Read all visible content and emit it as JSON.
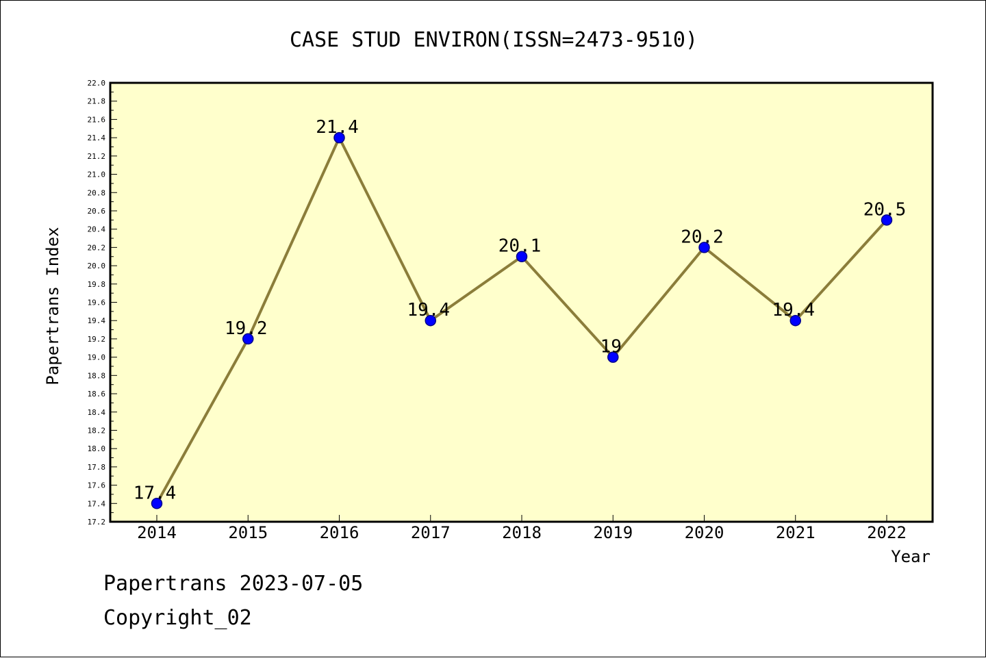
{
  "chart_data": {
    "type": "line",
    "title": "CASE STUD ENVIRON(ISSN=2473-9510)",
    "xlabel": "Year",
    "ylabel": "Papertrans Index",
    "categories": [
      "2014",
      "2015",
      "2016",
      "2017",
      "2018",
      "2019",
      "2020",
      "2021",
      "2022"
    ],
    "series": [
      {
        "values": [
          17.4,
          19.2,
          21.4,
          19.4,
          20.1,
          19.0,
          20.2,
          19.4,
          20.5
        ],
        "data_labels": [
          "17.4",
          "19.2",
          "21.4",
          "19.4",
          "20.1",
          "19",
          "20.2",
          "19.4",
          "20.5"
        ]
      }
    ],
    "ylim": [
      17.2,
      22.0
    ],
    "y_ticks": [
      "17.2",
      "17.4",
      "17.6",
      "17.8",
      "18.0",
      "18.2",
      "18.4",
      "18.6",
      "18.8",
      "19.0",
      "19.2",
      "19.4",
      "19.6",
      "19.8",
      "20.0",
      "20.2",
      "20.4",
      "20.6",
      "20.8",
      "21.0",
      "21.2",
      "21.4",
      "21.6",
      "21.8",
      "22.0"
    ],
    "grid": false,
    "colors": {
      "plot_background": "#ffffcc",
      "line": "#8b7d3a",
      "marker": "#0000ff",
      "marker_edge": "#00008b"
    }
  },
  "footer": {
    "date_text": "Papertrans 2023-07-05",
    "copyright_text": "Copyright_02"
  }
}
